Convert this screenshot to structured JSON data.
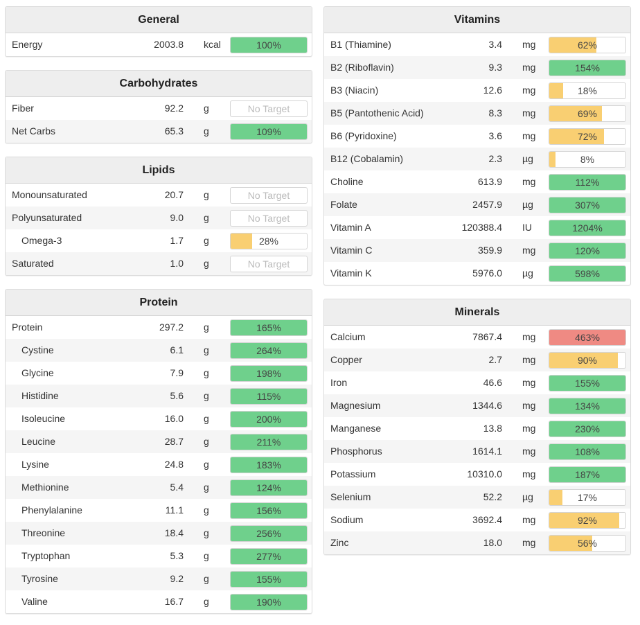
{
  "colors": {
    "good": "#6fd08c",
    "warn": "#f9cf72",
    "over": "#ef8a83"
  },
  "left_sections": [
    {
      "title": "General",
      "rows": [
        {
          "name": "Energy",
          "amount": "2003.8",
          "unit": "kcal",
          "pct": 100,
          "label": "100%",
          "status": "good"
        }
      ]
    },
    {
      "title": "Carbohydrates",
      "rows": [
        {
          "name": "Fiber",
          "amount": "92.2",
          "unit": "g",
          "pct": null,
          "label": "No Target",
          "status": "none"
        },
        {
          "name": "Net Carbs",
          "amount": "65.3",
          "unit": "g",
          "pct": 100,
          "label": "109%",
          "status": "good"
        }
      ]
    },
    {
      "title": "Lipids",
      "rows": [
        {
          "name": "Monounsaturated",
          "amount": "20.7",
          "unit": "g",
          "pct": null,
          "label": "No Target",
          "status": "none"
        },
        {
          "name": "Polyunsaturated",
          "amount": "9.0",
          "unit": "g",
          "pct": null,
          "label": "No Target",
          "status": "none"
        },
        {
          "name": "Omega-3",
          "amount": "1.7",
          "unit": "g",
          "pct": 28,
          "label": "28%",
          "status": "warn",
          "indent": true
        },
        {
          "name": "Saturated",
          "amount": "1.0",
          "unit": "g",
          "pct": null,
          "label": "No Target",
          "status": "none"
        }
      ]
    },
    {
      "title": "Protein",
      "rows": [
        {
          "name": "Protein",
          "amount": "297.2",
          "unit": "g",
          "pct": 100,
          "label": "165%",
          "status": "good"
        },
        {
          "name": "Cystine",
          "amount": "6.1",
          "unit": "g",
          "pct": 100,
          "label": "264%",
          "status": "good",
          "indent": true
        },
        {
          "name": "Glycine",
          "amount": "7.9",
          "unit": "g",
          "pct": 100,
          "label": "198%",
          "status": "good",
          "indent": true
        },
        {
          "name": "Histidine",
          "amount": "5.6",
          "unit": "g",
          "pct": 100,
          "label": "115%",
          "status": "good",
          "indent": true
        },
        {
          "name": "Isoleucine",
          "amount": "16.0",
          "unit": "g",
          "pct": 100,
          "label": "200%",
          "status": "good",
          "indent": true
        },
        {
          "name": "Leucine",
          "amount": "28.7",
          "unit": "g",
          "pct": 100,
          "label": "211%",
          "status": "good",
          "indent": true
        },
        {
          "name": "Lysine",
          "amount": "24.8",
          "unit": "g",
          "pct": 100,
          "label": "183%",
          "status": "good",
          "indent": true
        },
        {
          "name": "Methionine",
          "amount": "5.4",
          "unit": "g",
          "pct": 100,
          "label": "124%",
          "status": "good",
          "indent": true
        },
        {
          "name": "Phenylalanine",
          "amount": "11.1",
          "unit": "g",
          "pct": 100,
          "label": "156%",
          "status": "good",
          "indent": true
        },
        {
          "name": "Threonine",
          "amount": "18.4",
          "unit": "g",
          "pct": 100,
          "label": "256%",
          "status": "good",
          "indent": true
        },
        {
          "name": "Tryptophan",
          "amount": "5.3",
          "unit": "g",
          "pct": 100,
          "label": "277%",
          "status": "good",
          "indent": true
        },
        {
          "name": "Tyrosine",
          "amount": "9.2",
          "unit": "g",
          "pct": 100,
          "label": "155%",
          "status": "good",
          "indent": true
        },
        {
          "name": "Valine",
          "amount": "16.7",
          "unit": "g",
          "pct": 100,
          "label": "190%",
          "status": "good",
          "indent": true
        }
      ]
    }
  ],
  "right_sections": [
    {
      "title": "Vitamins",
      "rows": [
        {
          "name": "B1 (Thiamine)",
          "amount": "3.4",
          "unit": "mg",
          "pct": 62,
          "label": "62%",
          "status": "warn"
        },
        {
          "name": "B2 (Riboflavin)",
          "amount": "9.3",
          "unit": "mg",
          "pct": 100,
          "label": "154%",
          "status": "good"
        },
        {
          "name": "B3 (Niacin)",
          "amount": "12.6",
          "unit": "mg",
          "pct": 18,
          "label": "18%",
          "status": "warn"
        },
        {
          "name": "B5 (Pantothenic Acid)",
          "amount": "8.3",
          "unit": "mg",
          "pct": 69,
          "label": "69%",
          "status": "warn"
        },
        {
          "name": "B6 (Pyridoxine)",
          "amount": "3.6",
          "unit": "mg",
          "pct": 72,
          "label": "72%",
          "status": "warn"
        },
        {
          "name": "B12 (Cobalamin)",
          "amount": "2.3",
          "unit": "µg",
          "pct": 8,
          "label": "8%",
          "status": "warn"
        },
        {
          "name": "Choline",
          "amount": "613.9",
          "unit": "mg",
          "pct": 100,
          "label": "112%",
          "status": "good"
        },
        {
          "name": "Folate",
          "amount": "2457.9",
          "unit": "µg",
          "pct": 100,
          "label": "307%",
          "status": "good"
        },
        {
          "name": "Vitamin A",
          "amount": "120388.4",
          "unit": "IU",
          "pct": 100,
          "label": "1204%",
          "status": "good"
        },
        {
          "name": "Vitamin C",
          "amount": "359.9",
          "unit": "mg",
          "pct": 100,
          "label": "120%",
          "status": "good"
        },
        {
          "name": "Vitamin K",
          "amount": "5976.0",
          "unit": "µg",
          "pct": 100,
          "label": "598%",
          "status": "good"
        }
      ]
    },
    {
      "title": "Minerals",
      "rows": [
        {
          "name": "Calcium",
          "amount": "7867.4",
          "unit": "mg",
          "pct": 100,
          "label": "463%",
          "status": "over"
        },
        {
          "name": "Copper",
          "amount": "2.7",
          "unit": "mg",
          "pct": 90,
          "label": "90%",
          "status": "warn"
        },
        {
          "name": "Iron",
          "amount": "46.6",
          "unit": "mg",
          "pct": 100,
          "label": "155%",
          "status": "good"
        },
        {
          "name": "Magnesium",
          "amount": "1344.6",
          "unit": "mg",
          "pct": 100,
          "label": "134%",
          "status": "good"
        },
        {
          "name": "Manganese",
          "amount": "13.8",
          "unit": "mg",
          "pct": 100,
          "label": "230%",
          "status": "good"
        },
        {
          "name": "Phosphorus",
          "amount": "1614.1",
          "unit": "mg",
          "pct": 100,
          "label": "108%",
          "status": "good"
        },
        {
          "name": "Potassium",
          "amount": "10310.0",
          "unit": "mg",
          "pct": 100,
          "label": "187%",
          "status": "good"
        },
        {
          "name": "Selenium",
          "amount": "52.2",
          "unit": "µg",
          "pct": 17,
          "label": "17%",
          "status": "warn"
        },
        {
          "name": "Sodium",
          "amount": "3692.4",
          "unit": "mg",
          "pct": 92,
          "label": "92%",
          "status": "warn"
        },
        {
          "name": "Zinc",
          "amount": "18.0",
          "unit": "mg",
          "pct": 56,
          "label": "56%",
          "status": "warn"
        }
      ]
    }
  ]
}
